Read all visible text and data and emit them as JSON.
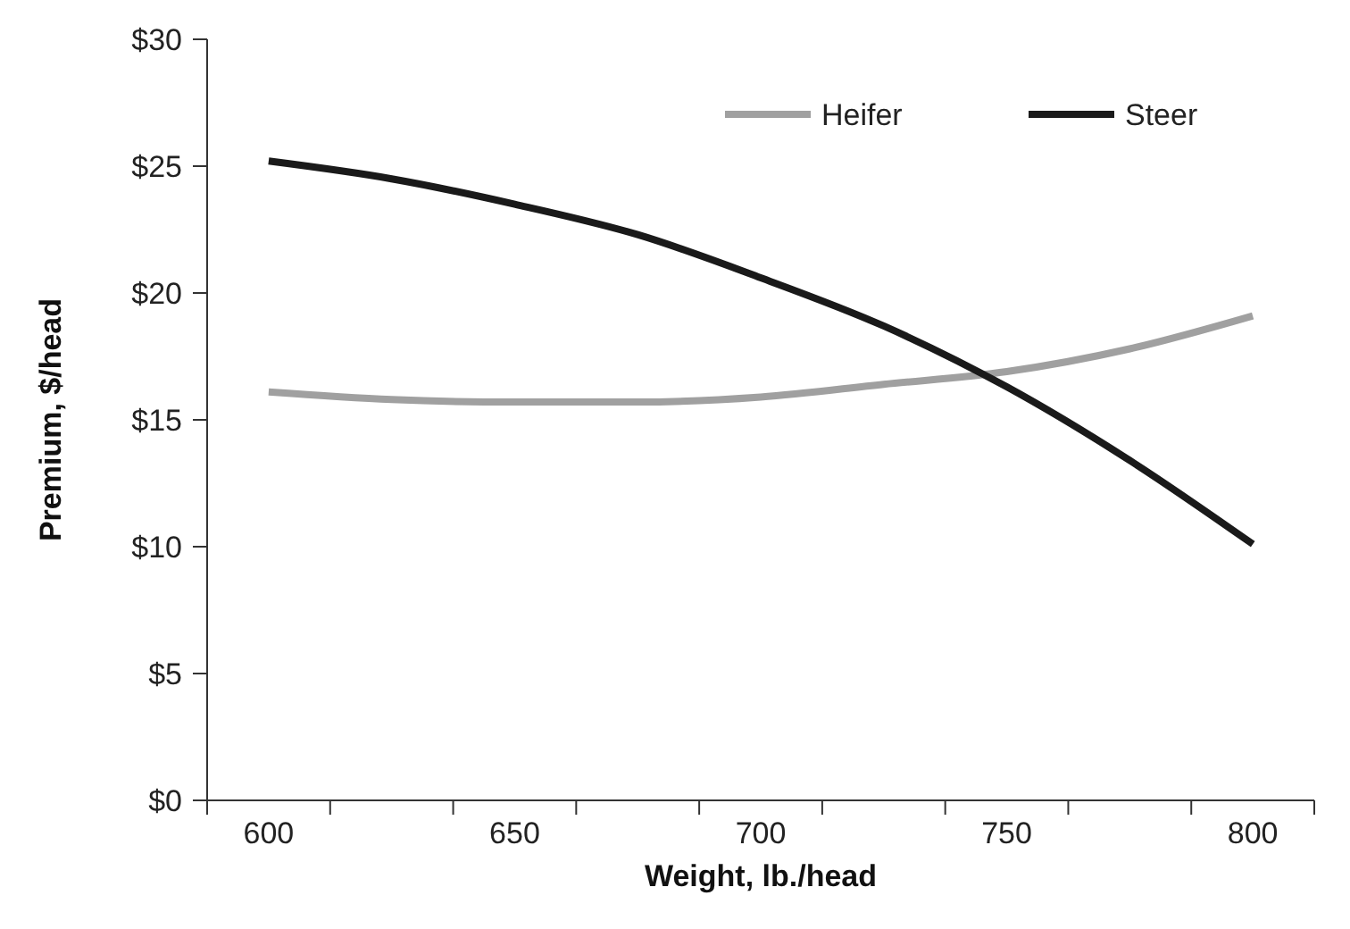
{
  "chart_data": {
    "type": "line",
    "xlabel": "Weight, lb./head",
    "ylabel": "Premium, $/head",
    "categories": [
      "600",
      null,
      "650",
      null,
      "700",
      null,
      "750",
      null,
      "800"
    ],
    "series": [
      {
        "name": "Heifer",
        "color": "#a0a0a0",
        "values": [
          16.1,
          15.8,
          15.7,
          15.7,
          15.9,
          16.4,
          16.9,
          17.8,
          19.1
        ]
      },
      {
        "name": "Steer",
        "color": "#1a1a1a",
        "values": [
          25.2,
          24.5,
          23.5,
          22.3,
          20.6,
          18.7,
          16.3,
          13.4,
          10.1
        ]
      }
    ],
    "ylim": [
      0,
      30
    ],
    "yticks": [
      {
        "value": 0,
        "label": "$0"
      },
      {
        "value": 5,
        "label": "$5"
      },
      {
        "value": 10,
        "label": "$10"
      },
      {
        "value": 15,
        "label": "$15"
      },
      {
        "value": 20,
        "label": "$20"
      },
      {
        "value": 25,
        "label": "$25"
      },
      {
        "value": 30,
        "label": "$30"
      }
    ],
    "legend": "top right",
    "grid": false,
    "marker": "none",
    "line_style": "solid"
  }
}
